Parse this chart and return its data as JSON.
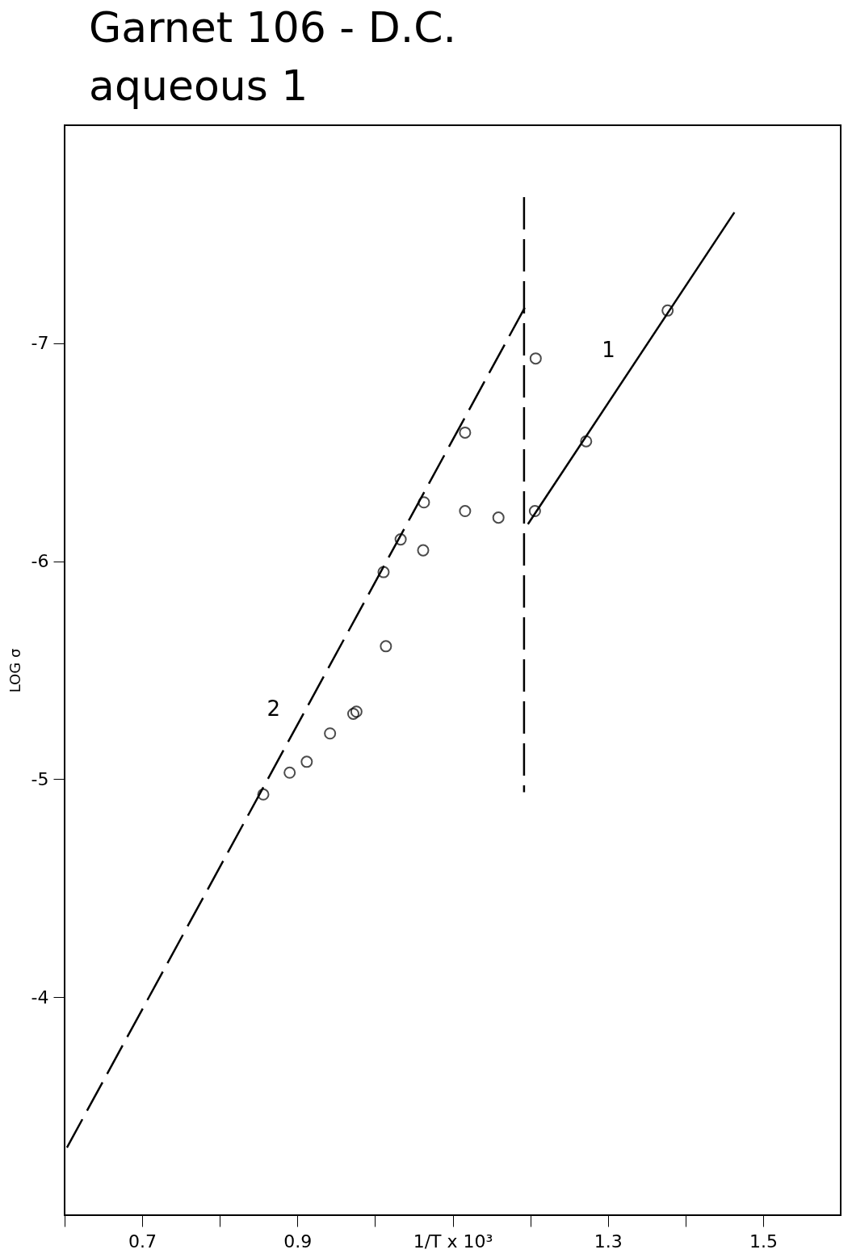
{
  "chart_data": {
    "type": "scatter",
    "title": "Garnet 106 - D.C.",
    "subtitle": "aqueous 1",
    "ylabel": "LOG σ",
    "xlim": [
      0.6,
      1.6
    ],
    "xticks": [
      {
        "value": 0.6,
        "label": null
      },
      0.7,
      {
        "value": 0.8,
        "label": null
      },
      0.9,
      {
        "value": 1.0,
        "label": null
      },
      {
        "value": 1.1,
        "label": "1/T x 10³"
      },
      {
        "value": 1.2,
        "label": null
      },
      1.3,
      {
        "value": 1.4,
        "label": null
      },
      1.5
    ],
    "ylim": [
      -3,
      -8
    ],
    "yticks": [
      -7,
      -6,
      -5,
      -4
    ],
    "grid": false,
    "series": [
      {
        "color": "#000000",
        "marker": "circle",
        "x": [
          0.856,
          0.89,
          0.912,
          0.942,
          0.972,
          0.976,
          1.014,
          1.011,
          1.033,
          1.062,
          1.063,
          1.116,
          1.116,
          1.159,
          1.206,
          1.207,
          1.272,
          1.377
        ],
        "values": [
          -4.93,
          -5.03,
          -5.08,
          -5.21,
          -5.3,
          -5.31,
          -5.61,
          -5.95,
          -6.1,
          -6.05,
          -6.27,
          -6.23,
          -6.59,
          -6.2,
          -6.23,
          -6.93,
          -6.55,
          -7.15
        ]
      },
      {
        "type": "line",
        "name": "2",
        "color": "#000000",
        "line_style": "dashed",
        "x": [
          0.603,
          1.194
        ],
        "values": [
          -3.31,
          -7.17
        ]
      },
      {
        "type": "line",
        "name": "1",
        "color": "#000000",
        "line_style": "solid",
        "x": [
          1.197,
          1.463
        ],
        "values": [
          -6.17,
          -7.6
        ]
      },
      {
        "type": "line",
        "color": "#000000",
        "line_style": "dashed",
        "x": [
          1.192,
          1.192
        ],
        "values": [
          -7.67,
          -4.94
        ]
      }
    ]
  }
}
